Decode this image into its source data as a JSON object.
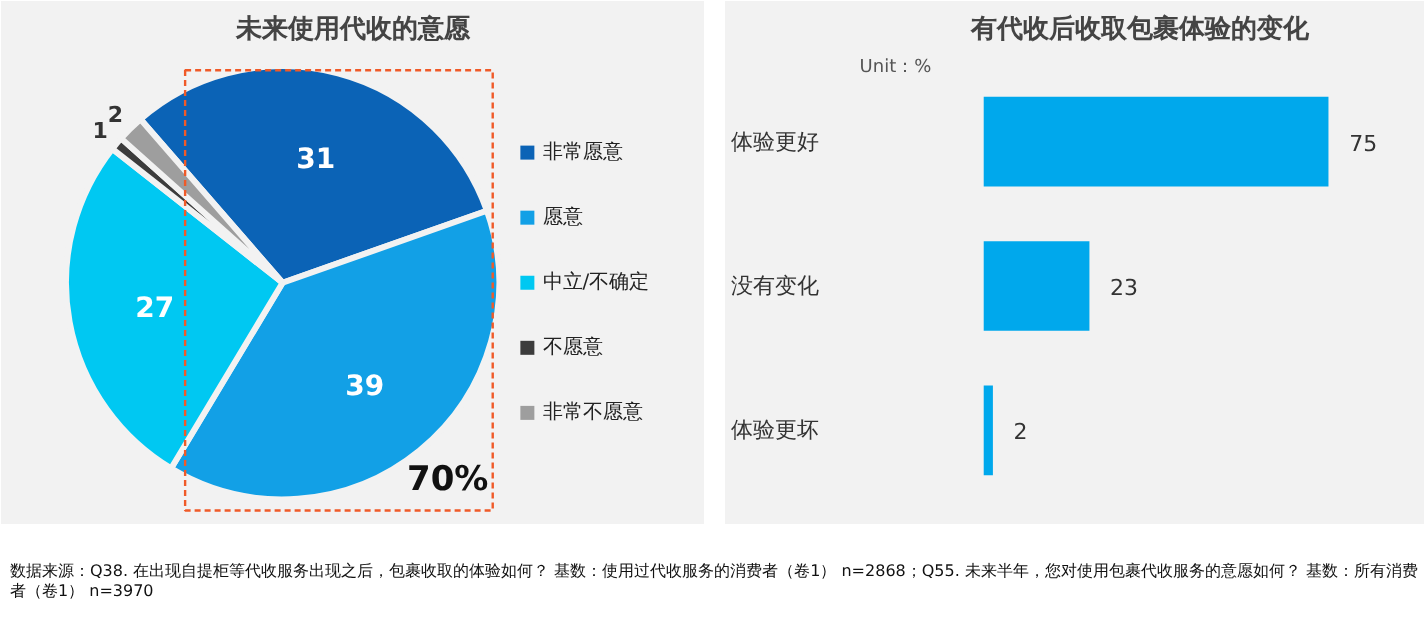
{
  "chart_data": [
    {
      "type": "pie",
      "title": "未来使用代收的意愿",
      "categories": [
        "非常愿意",
        "愿意",
        "中立/不确定",
        "不愿意",
        "非常不愿意"
      ],
      "values": [
        31,
        39,
        27,
        1,
        2
      ],
      "colors": [
        "#0b63b6",
        "#12a0e6",
        "#00c8f2",
        "#3c3c3c",
        "#9e9e9e"
      ],
      "data_labels": true,
      "legend": "right",
      "annotations": [
        "70%"
      ]
    },
    {
      "type": "bar",
      "orientation": "horizontal",
      "title": "有代收后收取包裹体验的变化",
      "categories": [
        "体验更好",
        "没有变化",
        "体验更坏"
      ],
      "values": [
        75,
        23,
        2
      ],
      "color": "#00a8ec",
      "data_labels": true,
      "annotations": [
        "Unit：%"
      ]
    },
    {
      "type": "other",
      "annotations": [
        "数据来源：Q38. 在出现自提柜等代收服务出现之后，包裹收取的体验如何？  基数：使用过代收服务的消费者（卷1） n=2868；Q55. 未来半年，您对使用包裹代收服务的意愿如何？  基数：所有消费者（卷1） n=3970"
      ]
    }
  ]
}
